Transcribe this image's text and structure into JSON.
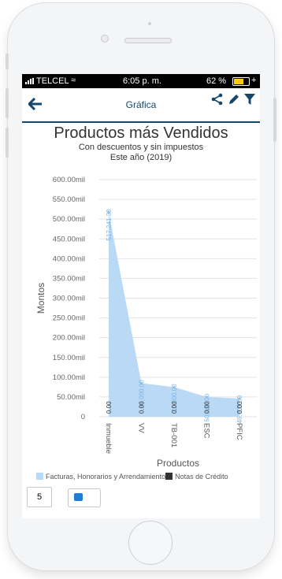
{
  "status": {
    "carrier": "TELCEL",
    "time": "6:05 p. m.",
    "battery": "62 %"
  },
  "toolbar": {
    "title": "Gráfica"
  },
  "icons": {
    "back": "arrow-left-icon",
    "share": "share-icon",
    "edit": "pencil-icon",
    "filter": "filter-icon"
  },
  "chart_data": {
    "type": "area",
    "title": "Productos más Vendidos",
    "subtitle": "Con descuentos y sin impuestos",
    "subtitle2": "Este año (2019)",
    "xlabel": "Productos",
    "ylabel": "Montos",
    "categories": [
      "Inmueble",
      "VV",
      "TB-001",
      "ESC",
      "PFIC"
    ],
    "y_ticks": [
      "0",
      "50.00mil",
      "100.00mil",
      "150.00mil",
      "200.00mil",
      "250.00mil",
      "300.00mil",
      "350.00mil",
      "400.00mil",
      "450.00mil",
      "500.00mil",
      "550.00mil",
      "600.00mil"
    ],
    "ylim": [
      0,
      600000
    ],
    "grid": true,
    "legend_position": "bottom",
    "series": [
      {
        "name": "Facturas, Honorarios y Arrendamiento",
        "color": "#b9d9f5",
        "values": [
          517241.38,
          85000.0,
          75000.0,
          50000.0,
          46000.0
        ],
        "labels": [
          "517,241.38",
          "85,000.00",
          "75,000.00",
          "50,000.00",
          "46,000.00"
        ]
      },
      {
        "name": "Notas de Crédito",
        "color": "#333333",
        "values": [
          0,
          0,
          0,
          0,
          0
        ],
        "labels": [
          "0.00",
          "0.00",
          "0.00",
          "0.00",
          "0.00"
        ]
      }
    ]
  },
  "controls": {
    "page_size": "5"
  }
}
